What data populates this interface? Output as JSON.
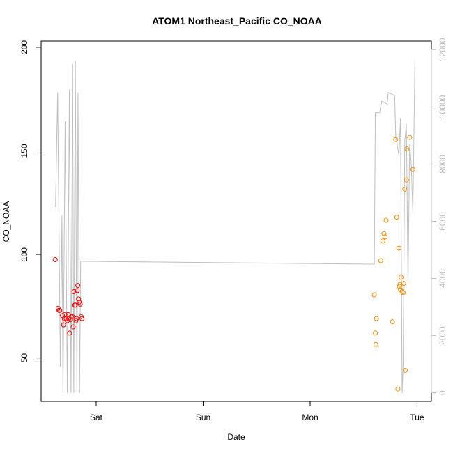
{
  "chart_data": {
    "type": "scatter",
    "title": "ATOM1 Northeast_Pacific CO_NOAA",
    "xlabel": "Date",
    "ylabel": "CO_NOAA",
    "x_ticks": [
      "Sat",
      "Sun",
      "Mon",
      "Tue"
    ],
    "y_ticks": [
      "50",
      "100",
      "150",
      "200"
    ],
    "y_range": [
      29,
      203
    ],
    "y2_ticks": [
      "0",
      "2000",
      "4000",
      "6000",
      "8000",
      "10000",
      "12000"
    ],
    "y2_range": [
      -300,
      12300
    ],
    "grid": false,
    "colors": {
      "segment1_points": "#ff0000",
      "segment2_points": "#ff8c00",
      "secondary_line": "#bebebe",
      "axis": "#000000",
      "secondary_axis": "#bebebe"
    },
    "series": [
      {
        "points_color": "#ff0000",
        "x": [
          -0.383,
          -0.355,
          -0.348,
          -0.341,
          -0.315,
          -0.305,
          -0.298,
          -0.291,
          -0.28,
          -0.27,
          -0.262,
          -0.255,
          -0.248,
          -0.24,
          -0.232,
          -0.222,
          -0.215,
          -0.208,
          -0.2,
          -0.195,
          -0.188,
          -0.183,
          -0.177,
          -0.172,
          -0.165,
          -0.158,
          -0.15,
          -0.14,
          -0.133
        ],
        "y": [
          97.5,
          74,
          73,
          73,
          70.5,
          66,
          69,
          71,
          69,
          68,
          71,
          69,
          62,
          68.5,
          70,
          70,
          65,
          82,
          75.5,
          75.5,
          68,
          69,
          82.5,
          85,
          78.5,
          77,
          76,
          70,
          69
        ]
      },
      {
        "points_color": "#ff8c00",
        "x": [
          2.6,
          2.61,
          2.615,
          2.62,
          2.66,
          2.68,
          2.69,
          2.7,
          2.71,
          2.77,
          2.8,
          2.81,
          2.82,
          2.83,
          2.835,
          2.84,
          2.845,
          2.85,
          2.86,
          2.87,
          2.875,
          2.885,
          2.89,
          2.9,
          2.905,
          2.93,
          2.96
        ],
        "y": [
          80.5,
          62,
          56.5,
          69,
          97,
          106.5,
          110,
          108.5,
          116.5,
          67.5,
          155.5,
          118,
          35,
          103,
          84.5,
          85.5,
          83,
          89,
          82,
          81.5,
          86,
          131.5,
          44,
          136,
          151,
          156.5,
          141
        ]
      }
    ],
    "secondary_series": {
      "name": "",
      "axis": "right",
      "color": "#bebebe",
      "x": [
        -0.38,
        -0.36,
        -0.335,
        -0.32,
        -0.31,
        -0.29,
        -0.27,
        -0.25,
        -0.235,
        -0.22,
        -0.21,
        -0.195,
        -0.18,
        -0.17,
        -0.155,
        -0.145,
        -0.14,
        -0.135,
        2.6,
        2.61,
        2.65,
        2.67,
        2.72,
        2.73,
        2.79,
        2.8,
        2.83,
        2.845,
        2.86,
        2.87,
        2.885,
        2.9,
        2.915,
        2.93,
        2.945,
        2.96,
        2.98
      ],
      "y": [
        6500,
        10500,
        900,
        6200,
        0,
        9500,
        0,
        10600,
        0,
        11500,
        0,
        11600,
        0,
        10500,
        0,
        4600,
        4600,
        4600,
        4500,
        9800,
        9800,
        10200,
        10100,
        10500,
        10400,
        9000,
        8300,
        9600,
        0,
        1000,
        8800,
        9400,
        3800,
        8700,
        8000,
        6300,
        11600
      ]
    }
  }
}
